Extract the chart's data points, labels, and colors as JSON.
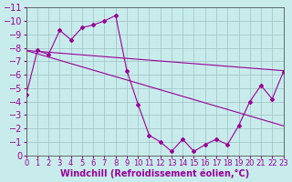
{
  "xlabel": "Windchill (Refroidissement éolien,°C)",
  "ylabel": "",
  "background_color": "#c8ecec",
  "grid_color": "#a0c0c0",
  "line_color": "#990099",
  "xlim": [
    0,
    23
  ],
  "ylim": [
    -11,
    0
  ],
  "yticks": [
    0,
    -1,
    -2,
    -3,
    -4,
    -5,
    -6,
    -7,
    -8,
    -9,
    -10,
    -11
  ],
  "xticks": [
    0,
    1,
    2,
    3,
    4,
    5,
    6,
    7,
    8,
    9,
    10,
    11,
    12,
    13,
    14,
    15,
    16,
    17,
    18,
    19,
    20,
    21,
    22,
    23
  ],
  "line1_x": [
    0,
    1,
    2,
    3,
    4,
    5,
    6,
    7,
    8,
    9,
    10,
    11,
    12,
    13,
    14,
    15,
    16,
    17,
    18,
    19,
    20,
    21,
    22,
    23
  ],
  "line1_y": [
    -4.5,
    -7.8,
    -7.5,
    -9.3,
    -8.6,
    -9.5,
    -9.7,
    -10.0,
    -10.4,
    -6.3,
    -3.8,
    -1.5,
    -1.0,
    -0.3,
    -1.2,
    -0.3,
    -0.8,
    -1.2,
    -0.8,
    -2.2,
    -4.0,
    -5.2,
    -4.2,
    -6.2
  ],
  "line2_x": [
    0,
    23
  ],
  "line2_y": [
    -7.8,
    -2.2
  ],
  "line3_x": [
    0,
    23
  ],
  "line3_y": [
    -7.8,
    -6.3
  ],
  "font_size_xlabel": 7,
  "font_size_ytick": 7,
  "font_size_xtick": 6
}
